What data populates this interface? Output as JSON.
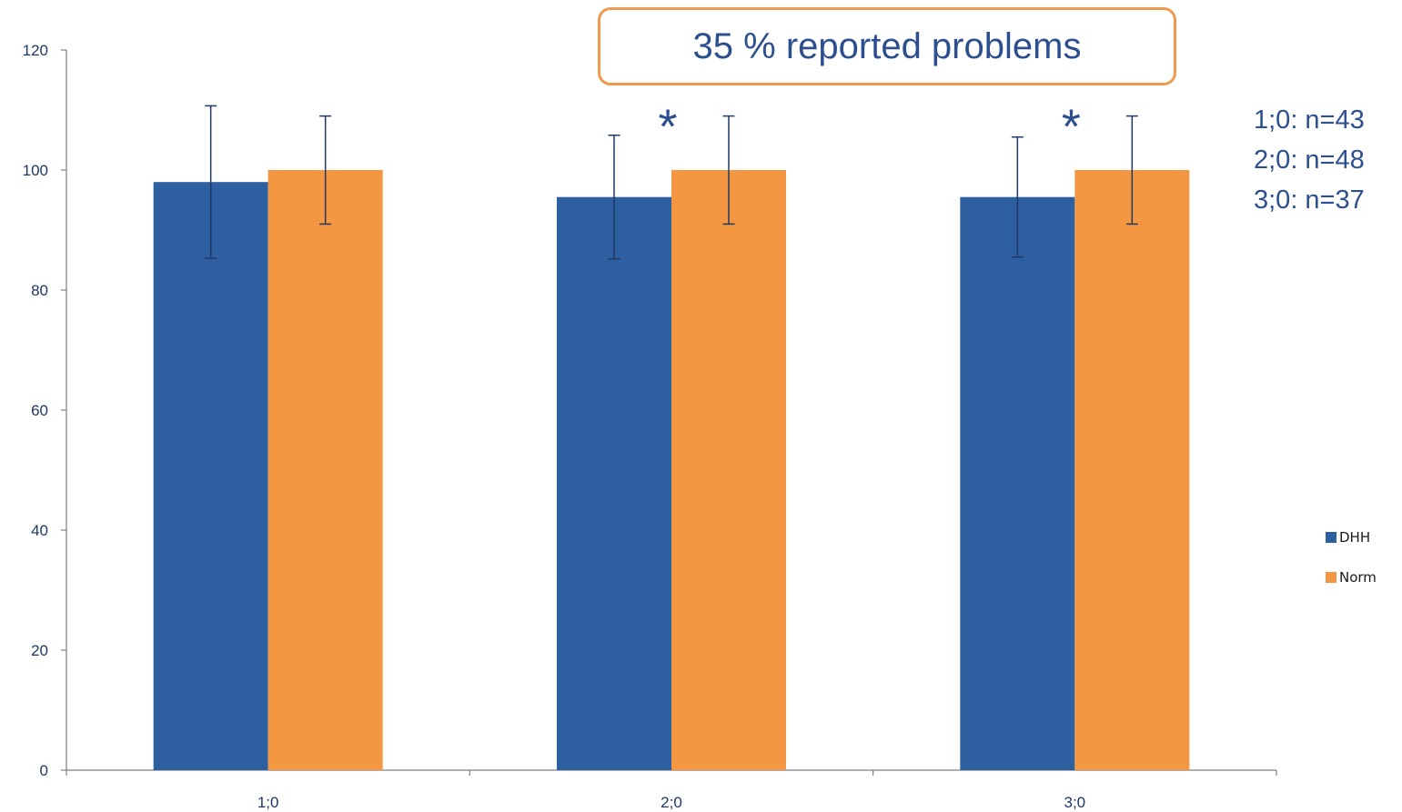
{
  "chart_data": {
    "type": "bar",
    "categories": [
      "1;0",
      "2;0",
      "3;0"
    ],
    "series": [
      {
        "name": "DHH",
        "color": "#2e5fa1",
        "values": [
          98,
          95.5,
          95.5
        ],
        "error": [
          12.7,
          10.3,
          10
        ]
      },
      {
        "name": "Norm",
        "color": "#f49742",
        "values": [
          100,
          100,
          100
        ],
        "error": [
          9,
          9,
          9
        ]
      }
    ],
    "ylim": [
      0,
      120
    ],
    "yticks": [
      0,
      20,
      40,
      60,
      80,
      100,
      120
    ],
    "grid": false,
    "legend_position": "right",
    "significance": [
      {
        "category": "2;0",
        "marker": "*"
      },
      {
        "category": "3;0",
        "marker": "*"
      }
    ]
  },
  "callout": {
    "text": "35 % reported problems",
    "border_color": "#ed9a4e"
  },
  "sample_sizes": [
    "1;0: n=43",
    "2;0: n=48",
    "3;0: n=37"
  ],
  "legend": [
    {
      "label": "DHH",
      "color": "#2e5fa1"
    },
    {
      "label": "Norm",
      "color": "#f49742"
    }
  ],
  "colors": {
    "text": "#2e4f8f",
    "axis": "#7f7f7f",
    "error_bar": "#1f3864"
  }
}
